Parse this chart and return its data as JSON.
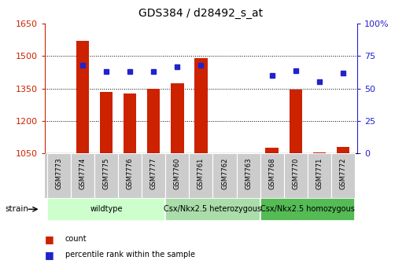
{
  "title": "GDS384 / d28492_s_at",
  "samples": [
    "GSM7773",
    "GSM7774",
    "GSM7775",
    "GSM7776",
    "GSM7777",
    "GSM7760",
    "GSM7761",
    "GSM7762",
    "GSM7763",
    "GSM7768",
    "GSM7770",
    "GSM7771",
    "GSM7772"
  ],
  "counts": [
    1050,
    1570,
    1335,
    1325,
    1350,
    1375,
    1490,
    1050,
    1050,
    1075,
    1345,
    1055,
    1080
  ],
  "percentiles": [
    null,
    68,
    63,
    63,
    63,
    67,
    68,
    null,
    null,
    60,
    64,
    55,
    62
  ],
  "groups": [
    {
      "label": "wildtype",
      "start": 0,
      "end": 4,
      "color": "#ccffcc"
    },
    {
      "label": "Csx/Nkx2.5 heterozygous",
      "start": 5,
      "end": 8,
      "color": "#aaddaa"
    },
    {
      "label": "Csx/Nkx2.5 homozygous",
      "start": 9,
      "end": 12,
      "color": "#55bb55"
    }
  ],
  "bar_color": "#cc2200",
  "dot_color": "#2222cc",
  "ylim_left": [
    1050,
    1650
  ],
  "ylim_right": [
    0,
    100
  ],
  "yticks_left": [
    1050,
    1200,
    1350,
    1500,
    1650
  ],
  "yticks_right": [
    0,
    25,
    50,
    75,
    100
  ],
  "grid_values": [
    1200,
    1350,
    1500
  ],
  "background_color": "#ffffff",
  "bar_width": 0.55,
  "title_color": "#000000",
  "left_axis_color": "#cc2200",
  "right_axis_color": "#2222cc",
  "sample_box_color": "#cccccc",
  "title_fontsize": 10,
  "axis_fontsize": 8,
  "sample_fontsize": 6,
  "group_fontsize": 7
}
